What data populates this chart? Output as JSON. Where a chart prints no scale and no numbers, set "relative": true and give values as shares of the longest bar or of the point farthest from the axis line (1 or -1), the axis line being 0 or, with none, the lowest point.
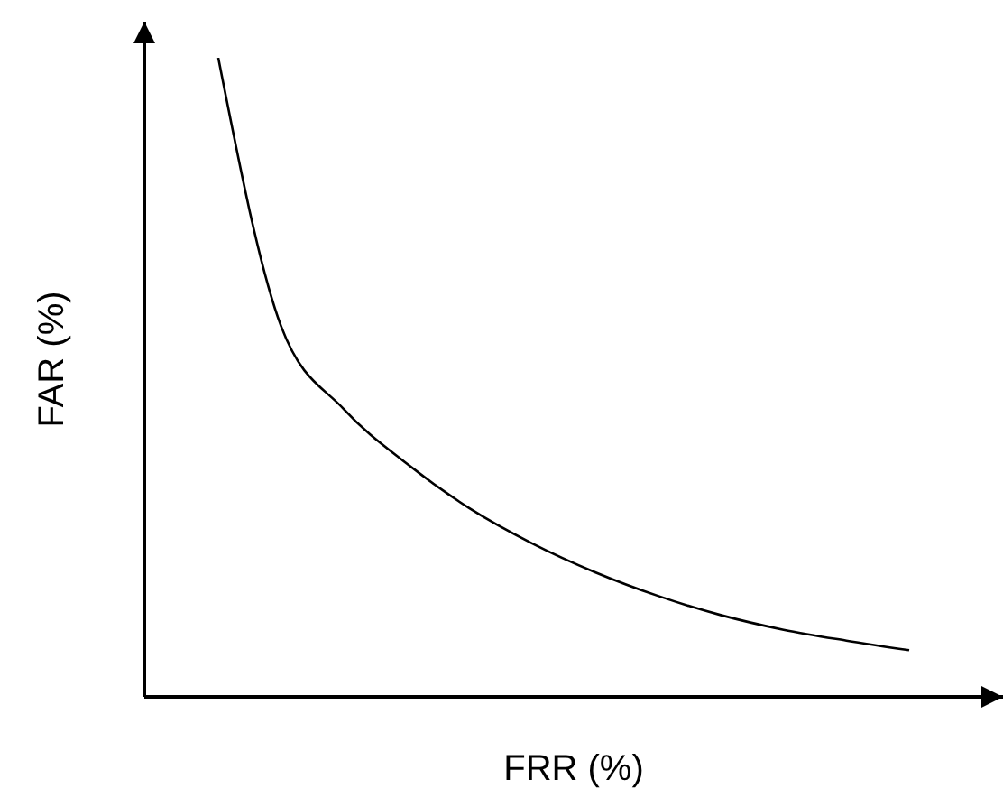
{
  "chart_data": {
    "type": "line",
    "relative": true,
    "xlabel": "FRR (%)",
    "ylabel": "FAR (%)",
    "categories": [
      null,
      null,
      null,
      null,
      null,
      null,
      null,
      null,
      null,
      null,
      null,
      null
    ],
    "series": [
      {
        "color": "#000000",
        "values": [
          1,
          0.58,
          0.45,
          0.365,
          0.295,
          0.24,
          0.195,
          0.158,
          0.128,
          0.105,
          0.088,
          0.073
        ]
      }
    ]
  }
}
